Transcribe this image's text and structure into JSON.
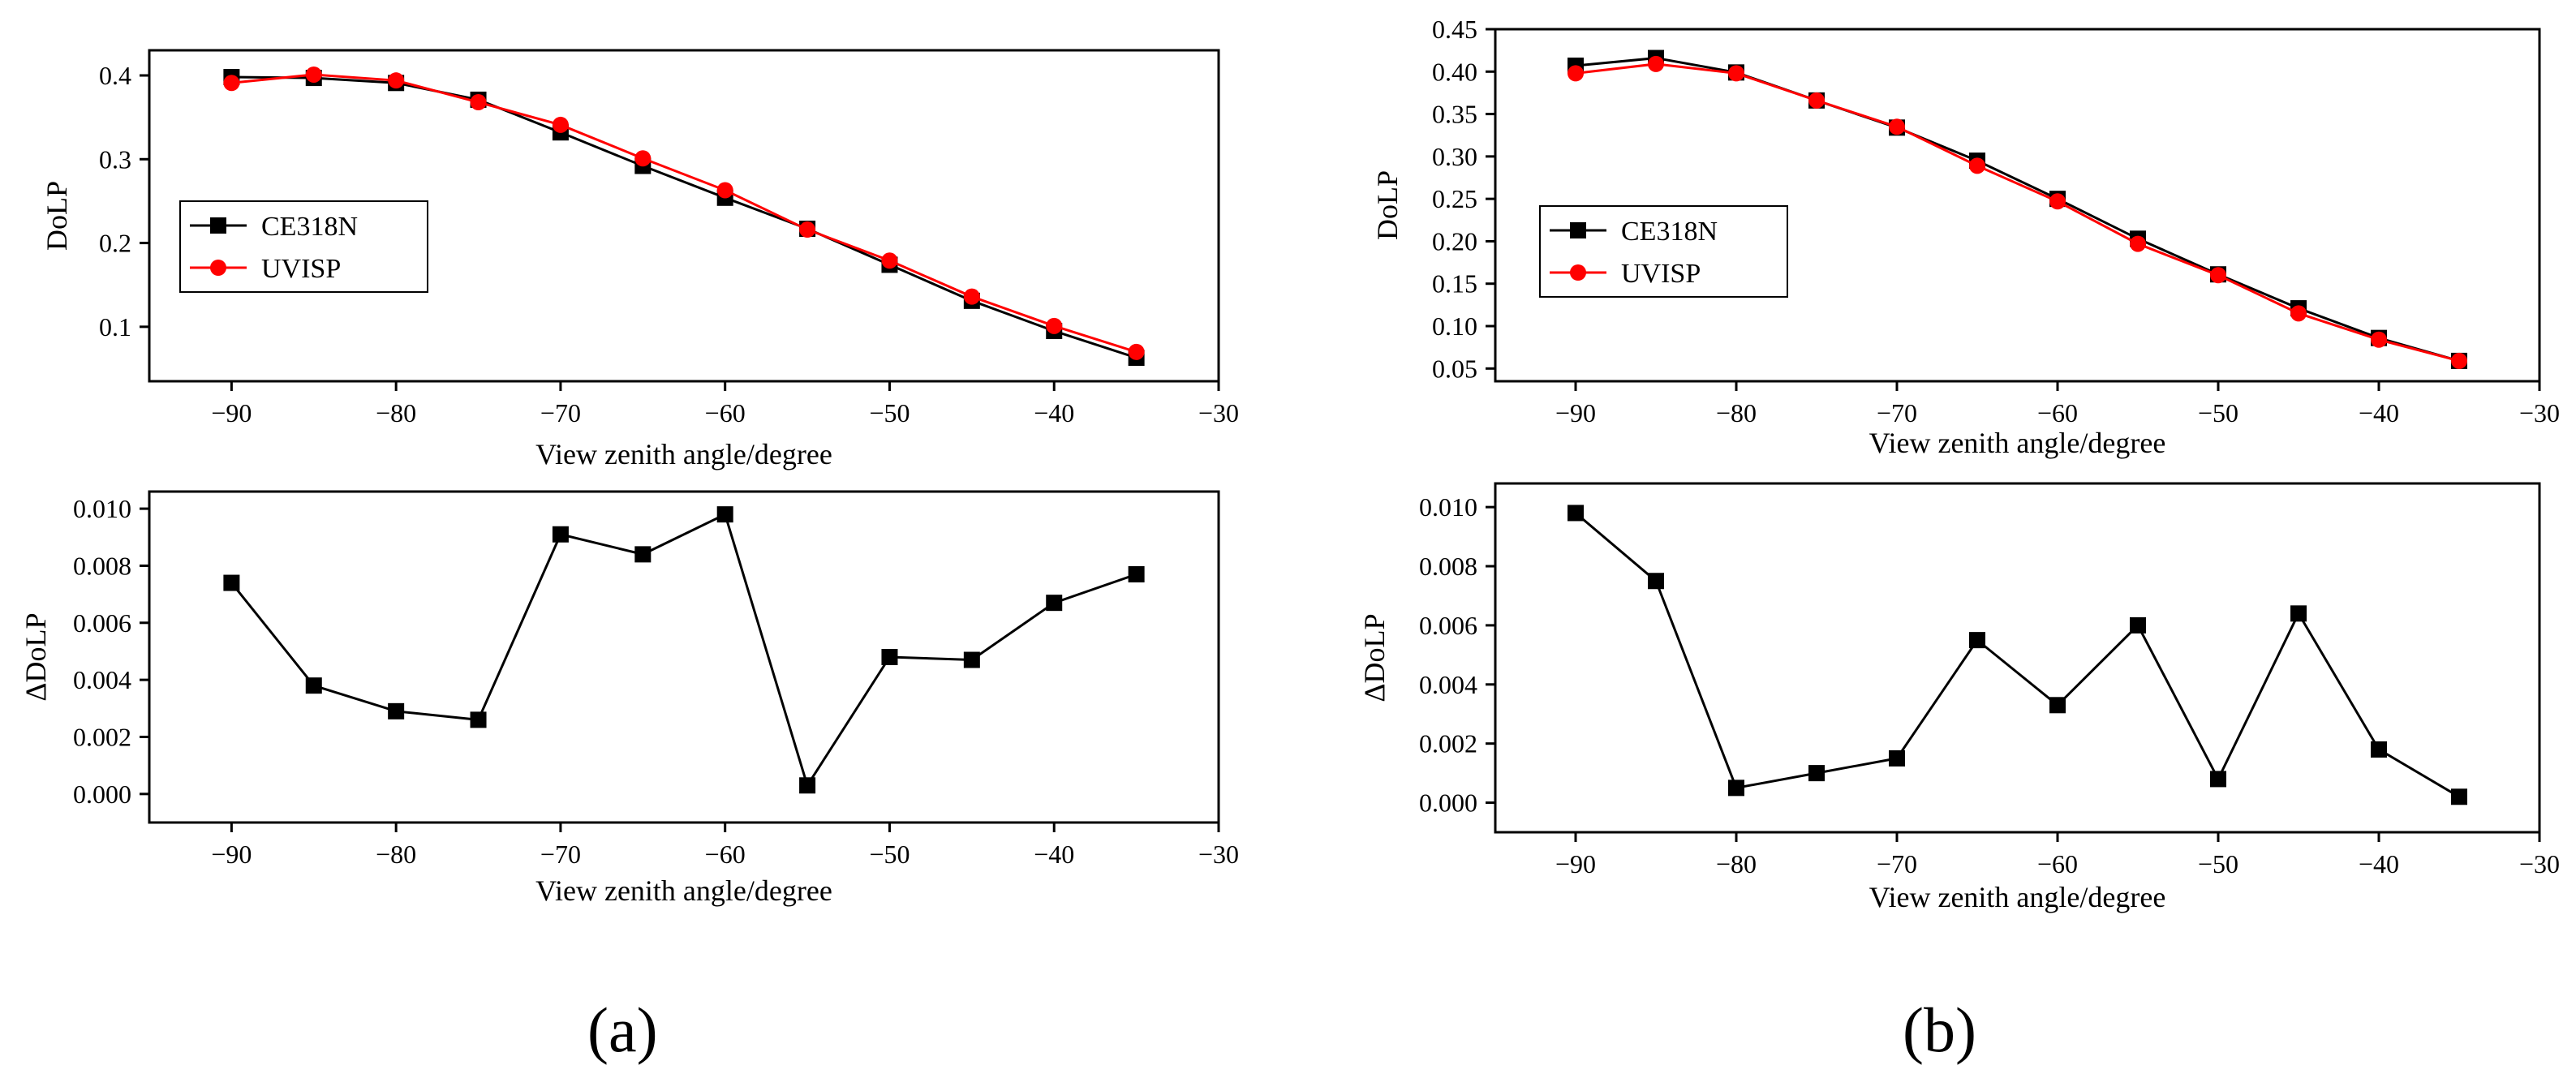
{
  "panel_labels": {
    "a": "(a)",
    "b": "(b)"
  },
  "colors": {
    "ce318n": "#000000",
    "uvisp": "#ff0000"
  },
  "chart_data": [
    {
      "id": "a-top",
      "type": "line",
      "xlabel": "View zenith angle/degree",
      "ylabel": "DoLP",
      "xlim": [
        -95,
        -30
      ],
      "ylim": [
        0.035,
        0.43
      ],
      "xticks": [
        -90,
        -80,
        -70,
        -60,
        -50,
        -40,
        -30
      ],
      "xtick_labels": [
        "−90",
        "−80",
        "−70",
        "−60",
        "−50",
        "−40",
        "−30"
      ],
      "yticks": [
        0.1,
        0.2,
        0.3,
        0.4
      ],
      "ytick_labels": [
        "0.1",
        "0.2",
        "0.3",
        "0.4"
      ],
      "legend": {
        "position": "middle-left",
        "entries": [
          "CE318N",
          "UVISP"
        ]
      },
      "x": [
        -90,
        -85,
        -80,
        -75,
        -70,
        -65,
        -60,
        -55,
        -50,
        -45,
        -40,
        -35
      ],
      "series": [
        {
          "name": "CE318N",
          "marker": "square",
          "values": [
            0.398,
            0.397,
            0.391,
            0.371,
            0.332,
            0.292,
            0.254,
            0.217,
            0.174,
            0.131,
            0.095,
            0.063
          ]
        },
        {
          "name": "UVISP",
          "marker": "circle",
          "values": [
            0.391,
            0.401,
            0.394,
            0.368,
            0.341,
            0.301,
            0.263,
            0.216,
            0.179,
            0.136,
            0.101,
            0.07
          ]
        }
      ]
    },
    {
      "id": "a-bottom",
      "type": "line",
      "xlabel": "View zenith angle/degree",
      "ylabel": "ΔDoLP",
      "xlim": [
        -95,
        -30
      ],
      "ylim": [
        -0.001,
        0.0106
      ],
      "xticks": [
        -90,
        -80,
        -70,
        -60,
        -50,
        -40,
        -30
      ],
      "xtick_labels": [
        "−90",
        "−80",
        "−70",
        "−60",
        "−50",
        "−40",
        "−30"
      ],
      "yticks": [
        0.0,
        0.002,
        0.004,
        0.006,
        0.008,
        0.01
      ],
      "ytick_labels": [
        "0.000",
        "0.002",
        "0.004",
        "0.006",
        "0.008",
        "0.010"
      ],
      "x": [
        -90,
        -85,
        -80,
        -75,
        -70,
        -65,
        -60,
        -55,
        -50,
        -45,
        -40,
        -35
      ],
      "series": [
        {
          "name": "ΔDoLP",
          "marker": "square",
          "values": [
            0.0074,
            0.0038,
            0.0029,
            0.0026,
            0.0091,
            0.0084,
            0.0098,
            0.0003,
            0.0048,
            0.0047,
            0.0067,
            0.0077
          ]
        }
      ]
    },
    {
      "id": "b-top",
      "type": "line",
      "xlabel": "View zenith angle/degree",
      "ylabel": "DoLP",
      "xlim": [
        -95,
        -30
      ],
      "ylim": [
        0.035,
        0.45
      ],
      "xticks": [
        -90,
        -80,
        -70,
        -60,
        -50,
        -40,
        -30
      ],
      "xtick_labels": [
        "−90",
        "−80",
        "−70",
        "−60",
        "−50",
        "−40",
        "−30"
      ],
      "yticks": [
        0.05,
        0.1,
        0.15,
        0.2,
        0.25,
        0.3,
        0.35,
        0.4,
        0.45
      ],
      "ytick_labels": [
        "0.05",
        "0.10",
        "0.15",
        "0.20",
        "0.25",
        "0.30",
        "0.35",
        "0.40",
        "0.45"
      ],
      "legend": {
        "position": "middle-left",
        "entries": [
          "CE318N",
          "UVISP"
        ]
      },
      "x": [
        -90,
        -85,
        -80,
        -75,
        -70,
        -65,
        -60,
        -55,
        -50,
        -45,
        -40,
        -35
      ],
      "series": [
        {
          "name": "CE318N",
          "marker": "square",
          "values": [
            0.407,
            0.416,
            0.399,
            0.366,
            0.334,
            0.295,
            0.25,
            0.203,
            0.161,
            0.121,
            0.086,
            0.059
          ]
        },
        {
          "name": "UVISP",
          "marker": "circle",
          "values": [
            0.398,
            0.409,
            0.398,
            0.366,
            0.335,
            0.289,
            0.247,
            0.197,
            0.16,
            0.115,
            0.084,
            0.059
          ]
        }
      ]
    },
    {
      "id": "b-bottom",
      "type": "line",
      "xlabel": "View zenith angle/degree",
      "ylabel": "ΔDoLP",
      "xlim": [
        -95,
        -30
      ],
      "ylim": [
        -0.001,
        0.0108
      ],
      "xticks": [
        -90,
        -80,
        -70,
        -60,
        -50,
        -40,
        -30
      ],
      "xtick_labels": [
        "−90",
        "−80",
        "−70",
        "−60",
        "−50",
        "−40",
        "−30"
      ],
      "yticks": [
        0.0,
        0.002,
        0.004,
        0.006,
        0.008,
        0.01
      ],
      "ytick_labels": [
        "0.000",
        "0.002",
        "0.004",
        "0.006",
        "0.008",
        "0.010"
      ],
      "x": [
        -90,
        -85,
        -80,
        -75,
        -70,
        -65,
        -60,
        -55,
        -50,
        -45,
        -40,
        -35
      ],
      "series": [
        {
          "name": "ΔDoLP",
          "marker": "square",
          "values": [
            0.0098,
            0.0075,
            0.0005,
            0.001,
            0.0015,
            0.0055,
            0.0033,
            0.006,
            0.0008,
            0.0064,
            0.0018,
            0.0002
          ]
        }
      ]
    }
  ]
}
